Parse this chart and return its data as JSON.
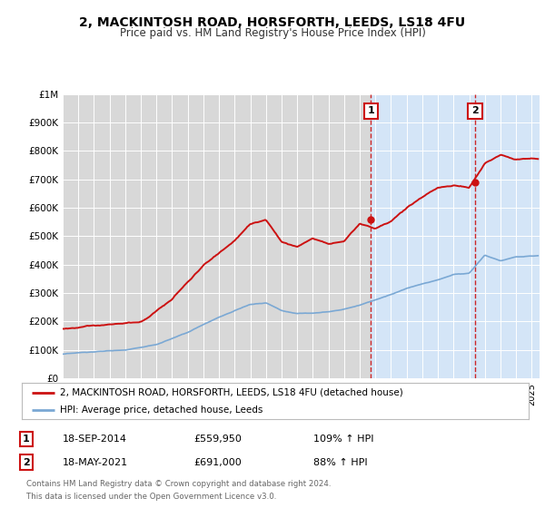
{
  "title": "2, MACKINTOSH ROAD, HORSFORTH, LEEDS, LS18 4FU",
  "subtitle": "Price paid vs. HM Land Registry's House Price Index (HPI)",
  "fig_bg_color": "#ffffff",
  "plot_bg_color_left": "#e8e8e8",
  "plot_bg_color_right": "#d8e8f5",
  "ylim": [
    0,
    1000000
  ],
  "xlim_start": 1995,
  "xlim_end": 2025.5,
  "ytick_labels": [
    "£0",
    "£100K",
    "£200K",
    "£300K",
    "£400K",
    "£500K",
    "£600K",
    "£700K",
    "£800K",
    "£900K",
    "£1M"
  ],
  "ytick_values": [
    0,
    100000,
    200000,
    300000,
    400000,
    500000,
    600000,
    700000,
    800000,
    900000,
    1000000
  ],
  "red_line_color": "#cc1111",
  "blue_line_color": "#7aa8d4",
  "sale1_x": 2014.72,
  "sale1_y": 559950,
  "sale2_x": 2021.38,
  "sale2_y": 691000,
  "legend_line1": "2, MACKINTOSH ROAD, HORSFORTH, LEEDS, LS18 4FU (detached house)",
  "legend_line2": "HPI: Average price, detached house, Leeds",
  "table_row1": [
    "1",
    "18-SEP-2014",
    "£559,950",
    "109% ↑ HPI"
  ],
  "table_row2": [
    "2",
    "18-MAY-2021",
    "£691,000",
    "88% ↑ HPI"
  ],
  "footer_line1": "Contains HM Land Registry data © Crown copyright and database right 2024.",
  "footer_line2": "This data is licensed under the Open Government Licence v3.0."
}
